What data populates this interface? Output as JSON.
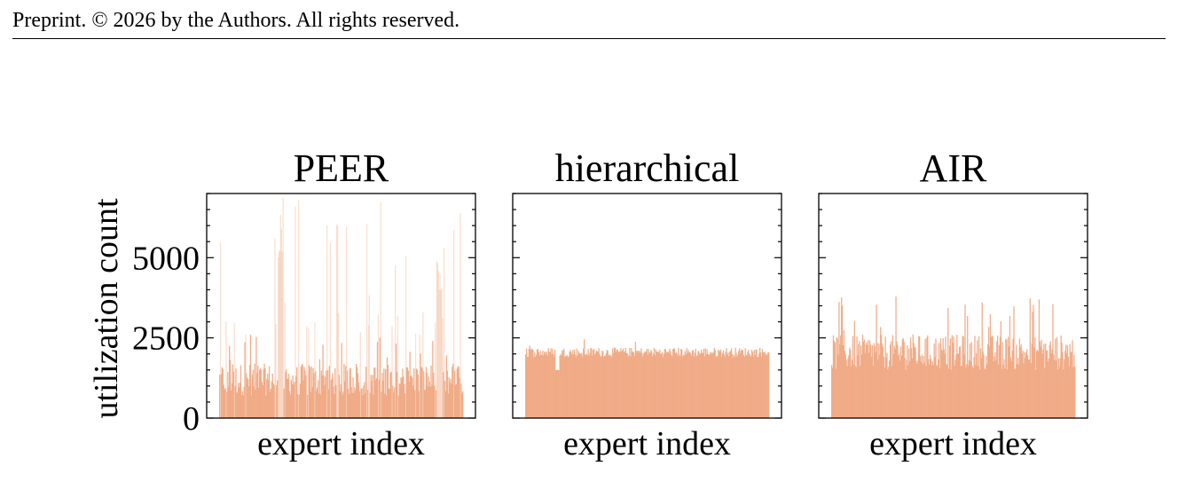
{
  "header": {
    "text": "Preprint. © 2026 by the Authors. All rights reserved."
  },
  "colors": {
    "bar": "#f0a67f",
    "axis": "#000000"
  },
  "chart_data": [
    {
      "type": "bar",
      "title": "PEER",
      "xlabel": "expert index",
      "ylabel": "utilization count",
      "ylim": [
        0,
        7000
      ],
      "yticks": [
        0,
        2500,
        5000
      ],
      "ytick_labels": [
        "0",
        "2500",
        "5000"
      ],
      "description": "Highly skewed utilization; most experts ~700-1500, many spikes to 3000+, peaks near 6800",
      "baseline": [
        700,
        1700
      ],
      "max_value": 6900,
      "spike_experts_approx": [
        0.25,
        0.88
      ],
      "legend": "none",
      "grid": false
    },
    {
      "type": "bar",
      "title": "hierarchical",
      "xlabel": "expert index",
      "ylim": [
        0,
        7000
      ],
      "yticks": [
        0,
        2500,
        5000
      ],
      "description": "Uniform utilization around 2000 across all experts",
      "baseline": [
        1900,
        2200
      ],
      "max_value": 2700,
      "legend": "none",
      "grid": false
    },
    {
      "type": "bar",
      "title": "AIR",
      "xlabel": "expert index",
      "ylim": [
        0,
        7000
      ],
      "yticks": [
        0,
        2500,
        5000
      ],
      "description": "Fairly balanced utilization, most experts 1500-2600, a few up to ~3800",
      "baseline": [
        1500,
        2600
      ],
      "max_value": 3800,
      "legend": "none",
      "grid": false
    }
  ]
}
